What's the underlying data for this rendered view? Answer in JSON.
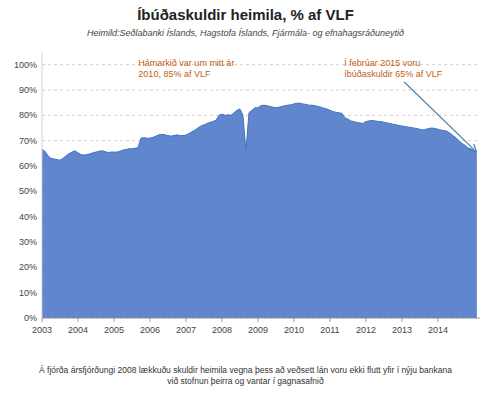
{
  "chart_data": {
    "type": "area",
    "title": "Íbúðaskuldir heimila, % af VLF",
    "subtitle": "Heimild:Seðlabanki Íslands, Hagstofa Íslands, Fjármála- og efnahagsráðuneytið",
    "footer": "Á fjórða ársfjórðungi 2008 lækkuðu skuldir heimila vegna þess að veðsett lán voru ekki flutt yfir í nýju bankana\nvið stofnun þeirra og vantar í gagnasafnið",
    "annotations": [
      {
        "text": "Hámarkið var um mitt ár\n2010, 85% af VLF"
      },
      {
        "text": "Í febrúar 2015 voru\níbúðaskuldir 65% af VLF"
      }
    ],
    "color": "#4472C4",
    "grid": true,
    "xlim": [
      2003,
      2015.17
    ],
    "ylim": [
      0,
      1.05
    ],
    "xticks": [
      2003,
      2004,
      2005,
      2006,
      2007,
      2008,
      2009,
      2010,
      2011,
      2012,
      2013,
      2014
    ],
    "yticks": [
      {
        "value": 0.0,
        "label": "0%"
      },
      {
        "value": 0.1,
        "label": "10%"
      },
      {
        "value": 0.2,
        "label": "20%"
      },
      {
        "value": 0.3,
        "label": "30%"
      },
      {
        "value": 0.4,
        "label": "40%"
      },
      {
        "value": 0.5,
        "label": "50%"
      },
      {
        "value": 0.6,
        "label": "60%"
      },
      {
        "value": 0.7,
        "label": "70%"
      },
      {
        "value": 0.8,
        "label": "80%"
      },
      {
        "value": 0.9,
        "label": "90%"
      },
      {
        "value": 1.0,
        "label": "100%"
      }
    ],
    "x": [
      2003.0,
      2003.083,
      2003.167,
      2003.25,
      2003.333,
      2003.417,
      2003.5,
      2003.583,
      2003.667,
      2003.75,
      2003.833,
      2003.917,
      2004.0,
      2004.083,
      2004.167,
      2004.25,
      2004.333,
      2004.417,
      2004.5,
      2004.583,
      2004.667,
      2004.75,
      2004.833,
      2004.917,
      2005.0,
      2005.083,
      2005.167,
      2005.25,
      2005.333,
      2005.417,
      2005.5,
      2005.583,
      2005.667,
      2005.75,
      2005.833,
      2005.917,
      2006.0,
      2006.083,
      2006.167,
      2006.25,
      2006.333,
      2006.417,
      2006.5,
      2006.583,
      2006.667,
      2006.75,
      2006.833,
      2006.917,
      2007.0,
      2007.083,
      2007.167,
      2007.25,
      2007.333,
      2007.417,
      2007.5,
      2007.583,
      2007.667,
      2007.75,
      2007.833,
      2007.917,
      2008.0,
      2008.083,
      2008.167,
      2008.25,
      2008.333,
      2008.417,
      2008.5,
      2008.583,
      2008.667,
      2008.75,
      2008.833,
      2008.917,
      2009.0,
      2009.083,
      2009.167,
      2009.25,
      2009.333,
      2009.417,
      2009.5,
      2009.583,
      2009.667,
      2009.75,
      2009.833,
      2009.917,
      2010.0,
      2010.083,
      2010.167,
      2010.25,
      2010.333,
      2010.417,
      2010.5,
      2010.583,
      2010.667,
      2010.75,
      2010.833,
      2010.917,
      2011.0,
      2011.083,
      2011.167,
      2011.25,
      2011.333,
      2011.417,
      2011.5,
      2011.583,
      2011.667,
      2011.75,
      2011.833,
      2011.917,
      2012.0,
      2012.083,
      2012.167,
      2012.25,
      2012.333,
      2012.417,
      2012.5,
      2012.583,
      2012.667,
      2012.75,
      2012.833,
      2012.917,
      2013.0,
      2013.083,
      2013.167,
      2013.25,
      2013.333,
      2013.417,
      2013.5,
      2013.583,
      2013.667,
      2013.75,
      2013.833,
      2013.917,
      2014.0,
      2014.083,
      2014.167,
      2014.25,
      2014.333,
      2014.417,
      2014.5,
      2014.583,
      2014.667,
      2014.75,
      2014.83,
      2014.917,
      2015.0,
      2015.083
    ],
    "values": [
      0.665,
      0.658,
      0.64,
      0.63,
      0.628,
      0.625,
      0.623,
      0.63,
      0.64,
      0.648,
      0.655,
      0.66,
      0.652,
      0.645,
      0.643,
      0.645,
      0.648,
      0.652,
      0.655,
      0.658,
      0.66,
      0.657,
      0.653,
      0.655,
      0.655,
      0.655,
      0.658,
      0.663,
      0.665,
      0.668,
      0.668,
      0.67,
      0.672,
      0.71,
      0.712,
      0.71,
      0.71,
      0.713,
      0.718,
      0.723,
      0.725,
      0.723,
      0.72,
      0.718,
      0.72,
      0.723,
      0.72,
      0.72,
      0.722,
      0.728,
      0.735,
      0.742,
      0.75,
      0.758,
      0.762,
      0.768,
      0.772,
      0.776,
      0.78,
      0.8,
      0.805,
      0.8,
      0.802,
      0.8,
      0.81,
      0.82,
      0.825,
      0.8,
      0.66,
      0.81,
      0.82,
      0.83,
      0.83,
      0.838,
      0.84,
      0.838,
      0.835,
      0.832,
      0.83,
      0.832,
      0.835,
      0.838,
      0.84,
      0.842,
      0.845,
      0.848,
      0.848,
      0.845,
      0.843,
      0.84,
      0.84,
      0.838,
      0.835,
      0.832,
      0.828,
      0.825,
      0.82,
      0.815,
      0.812,
      0.81,
      0.808,
      0.79,
      0.785,
      0.778,
      0.775,
      0.772,
      0.77,
      0.768,
      0.775,
      0.778,
      0.78,
      0.778,
      0.776,
      0.775,
      0.773,
      0.77,
      0.768,
      0.765,
      0.763,
      0.76,
      0.758,
      0.756,
      0.754,
      0.752,
      0.75,
      0.748,
      0.745,
      0.742,
      0.745,
      0.748,
      0.75,
      0.748,
      0.745,
      0.742,
      0.74,
      0.737,
      0.73,
      0.72,
      0.712,
      0.7,
      0.69,
      0.682,
      0.672,
      0.668,
      0.66,
      0.65
    ]
  }
}
